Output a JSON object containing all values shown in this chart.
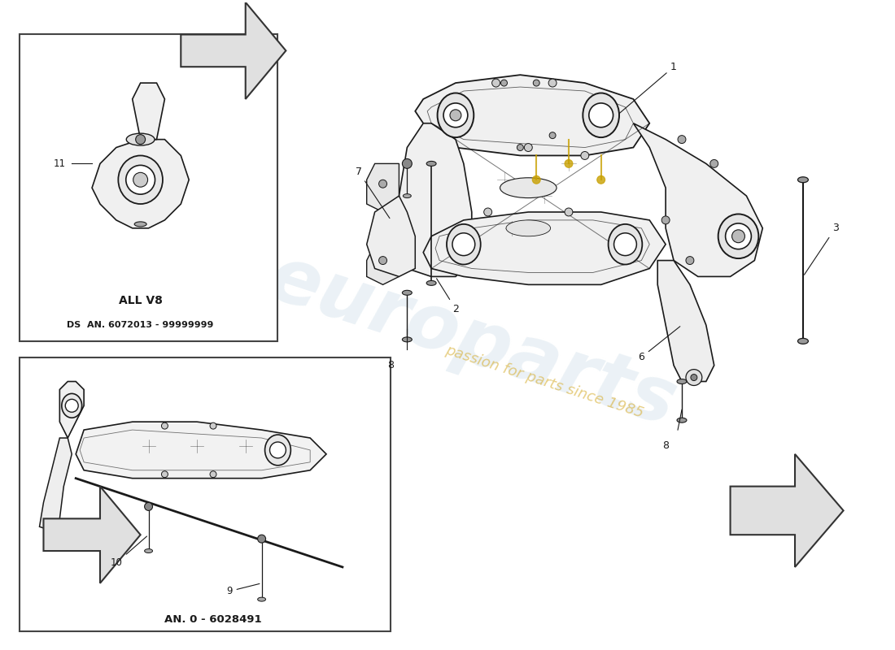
{
  "bg_color": "#ffffff",
  "line_color": "#1a1a1a",
  "box1_label": "ALL V8",
  "box1_sublabel": "DS  AN. 6072013 - 99999999",
  "box2_label": "AN. 0 - 6028491",
  "watermark_text": "passion for parts since 1985",
  "fig_width": 11.0,
  "fig_height": 8.0,
  "dpi": 100,
  "xlim": [
    0,
    110
  ],
  "ylim": [
    0,
    80
  ]
}
